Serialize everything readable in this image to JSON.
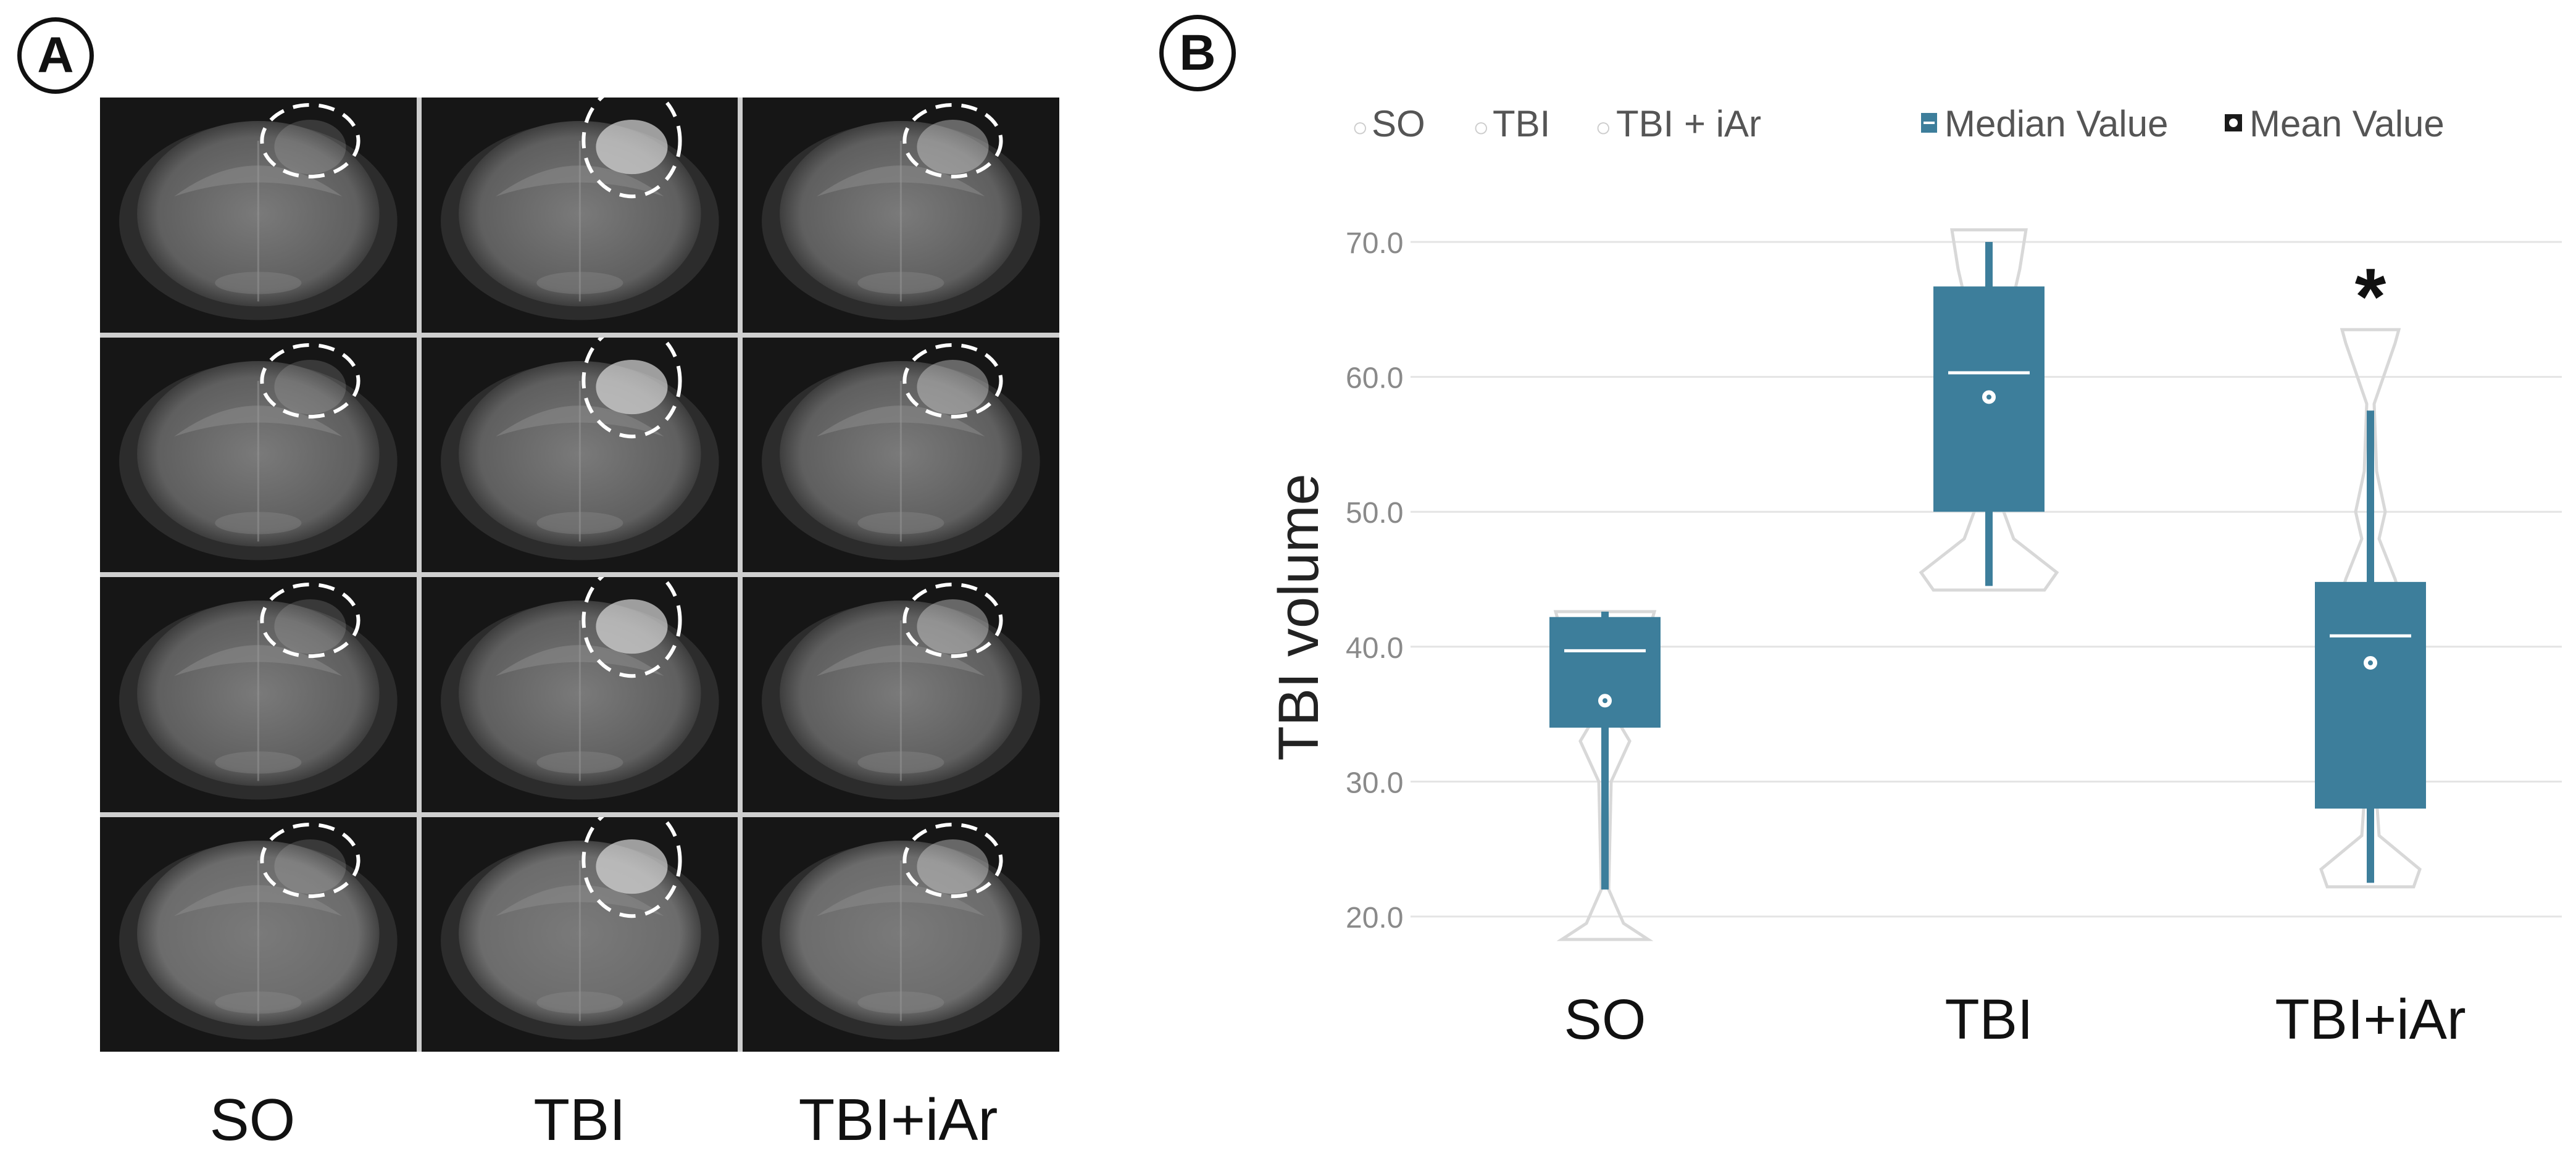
{
  "panel_a": {
    "letter": "A",
    "columns": [
      "SO",
      "TBI",
      "TBI+iAr"
    ],
    "rows": 4
  },
  "panel_b": {
    "letter": "B",
    "legend": {
      "groups": [
        "SO",
        "TBI",
        "TBI + iAr"
      ],
      "median_label": "Median Value",
      "mean_label": "Mean Value"
    },
    "significance_marker": "*"
  },
  "chart_data": {
    "type": "box",
    "ylabel": "TBI volume",
    "ylim": [
      17,
      72
    ],
    "yticks": [
      "20.0",
      "30.0",
      "40.0",
      "50.0",
      "60.0",
      "70.0"
    ],
    "categories": [
      "SO",
      "TBI",
      "TBI+iAr"
    ],
    "series": [
      {
        "category": "SO",
        "whisker_low": 22.0,
        "q1": 34.0,
        "median": 39.7,
        "q3": 42.2,
        "whisker_high": 42.6,
        "mean": 36.0
      },
      {
        "category": "TBI",
        "whisker_low": 44.5,
        "q1": 50.0,
        "median": 60.3,
        "q3": 66.7,
        "whisker_high": 70.0,
        "mean": 58.5
      },
      {
        "category": "TBI+iAr",
        "whisker_low": 22.5,
        "q1": 28.0,
        "median": 40.8,
        "q3": 44.8,
        "whisker_high": 57.5,
        "mean": 38.8
      }
    ],
    "significant": [
      false,
      false,
      true
    ],
    "colors": {
      "box": "#3d7e9b",
      "violin": "#d8d8d8",
      "grid": "#e4e4e4",
      "tick": "#8a8a8a"
    }
  }
}
